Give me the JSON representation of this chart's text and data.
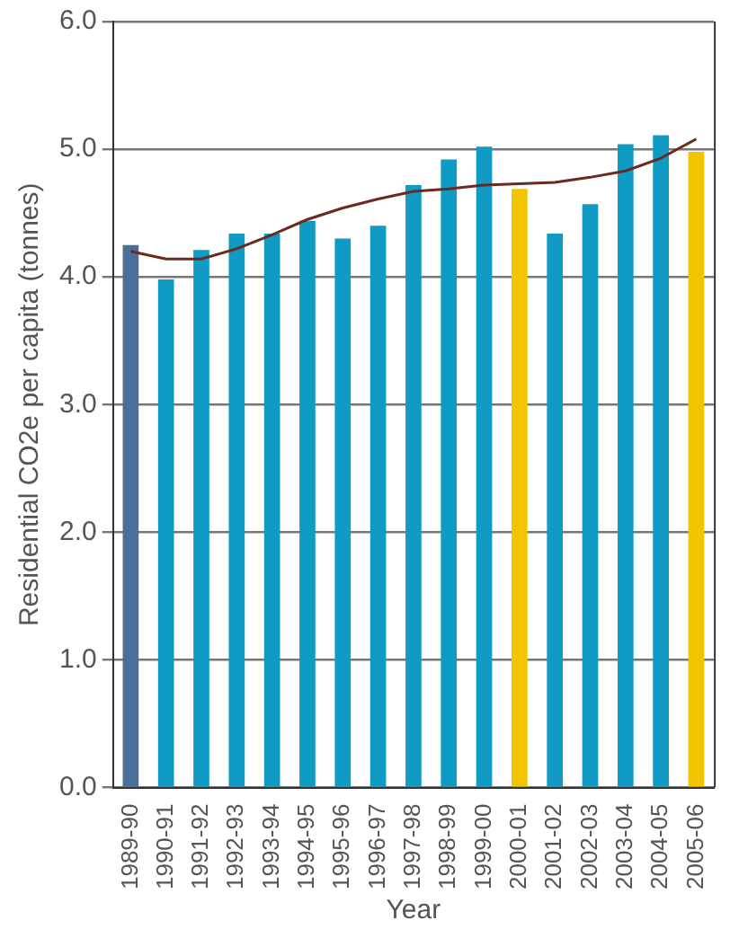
{
  "chart_data": {
    "type": "bar",
    "xlabel": "Year",
    "ylabel": "Residential CO2e per capita (tonnes)",
    "categories": [
      "1989-90",
      "1990-91",
      "1991-92",
      "1992-93",
      "1993-94",
      "1994-95",
      "1995-96",
      "1996-97",
      "1997-98",
      "1998-99",
      "1999-00",
      "2000-01",
      "2001-02",
      "2002-03",
      "2003-04",
      "2004-05",
      "2005-06"
    ],
    "series": [
      {
        "colors": [
          "#4a6f99",
          "#0f9bc4",
          "#0f9bc4",
          "#0f9bc4",
          "#0f9bc4",
          "#0f9bc4",
          "#0f9bc4",
          "#0f9bc4",
          "#0f9bc4",
          "#0f9bc4",
          "#0f9bc4",
          "#f2c500",
          "#0f9bc4",
          "#0f9bc4",
          "#0f9bc4",
          "#0f9bc4",
          "#f2c500"
        ],
        "values": [
          4.25,
          3.98,
          4.21,
          4.34,
          4.34,
          4.44,
          4.3,
          4.4,
          4.72,
          4.92,
          5.02,
          4.69,
          4.34,
          4.57,
          5.04,
          5.11,
          4.98
        ]
      },
      {
        "type": "line",
        "color": "#6b2a1e",
        "values": [
          4.2,
          4.14,
          4.14,
          4.22,
          4.33,
          4.45,
          4.54,
          4.61,
          4.67,
          4.69,
          4.72,
          4.73,
          4.74,
          4.78,
          4.83,
          4.93,
          5.08
        ]
      }
    ],
    "ylim": [
      0,
      6
    ],
    "yticks": [
      {
        "value": 0,
        "label": "0.0"
      },
      {
        "value": 1,
        "label": "1.0"
      },
      {
        "value": 2,
        "label": "2.0"
      },
      {
        "value": 3,
        "label": "3.0"
      },
      {
        "value": 4,
        "label": "4.0"
      },
      {
        "value": 5,
        "label": "5.0"
      },
      {
        "value": 6,
        "label": "6.0"
      }
    ],
    "grid": "y",
    "legend": false,
    "marker": "none"
  }
}
